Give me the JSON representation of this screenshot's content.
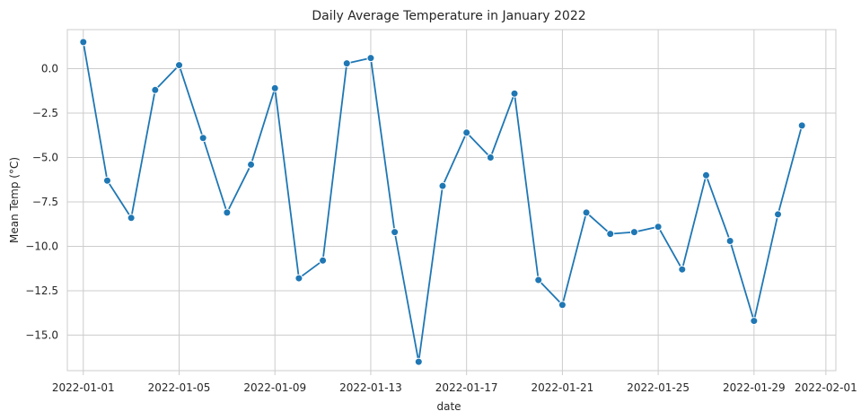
{
  "chart_data": {
    "type": "line",
    "title": "Daily Average Temperature in January 2022",
    "xlabel": "date",
    "ylabel": "Mean Temp (°C)",
    "ylim": [
      -17.0,
      2.2
    ],
    "xlim": [
      "2021-12-31T08:00",
      "2022-02-01T10:00"
    ],
    "grid": true,
    "x_ticks": [
      "2022-01-01",
      "2022-01-05",
      "2022-01-09",
      "2022-01-13",
      "2022-01-17",
      "2022-01-21",
      "2022-01-25",
      "2022-01-29",
      "2022-02-01"
    ],
    "y_ticks": [
      0.0,
      -2.5,
      -5.0,
      -7.5,
      -10.0,
      -12.5,
      -15.0
    ],
    "y_tick_labels": [
      "0.0",
      "−2.5",
      "−5.0",
      "−7.5",
      "−10.0",
      "−12.5",
      "−15.0"
    ],
    "series": [
      {
        "color": "#1f77b4",
        "marker": "circle",
        "x": [
          "2022-01-01",
          "2022-01-02",
          "2022-01-03",
          "2022-01-04",
          "2022-01-05",
          "2022-01-06",
          "2022-01-07",
          "2022-01-08",
          "2022-01-09",
          "2022-01-10",
          "2022-01-11",
          "2022-01-12",
          "2022-01-13",
          "2022-01-14",
          "2022-01-15",
          "2022-01-16",
          "2022-01-17",
          "2022-01-18",
          "2022-01-19",
          "2022-01-20",
          "2022-01-21",
          "2022-01-22",
          "2022-01-23",
          "2022-01-24",
          "2022-01-25",
          "2022-01-26",
          "2022-01-27",
          "2022-01-28",
          "2022-01-29",
          "2022-01-30",
          "2022-01-31"
        ],
        "values": [
          1.5,
          -6.3,
          -8.4,
          -1.2,
          0.2,
          -3.9,
          -8.1,
          -5.4,
          -1.1,
          -11.8,
          -10.8,
          0.3,
          0.6,
          -9.2,
          -16.5,
          -6.6,
          -3.6,
          -5.0,
          -1.4,
          -11.9,
          -13.3,
          -8.1,
          -9.3,
          -9.2,
          -8.9,
          -11.3,
          -6.0,
          -9.7,
          -14.2,
          -8.2,
          -3.2
        ]
      }
    ]
  }
}
